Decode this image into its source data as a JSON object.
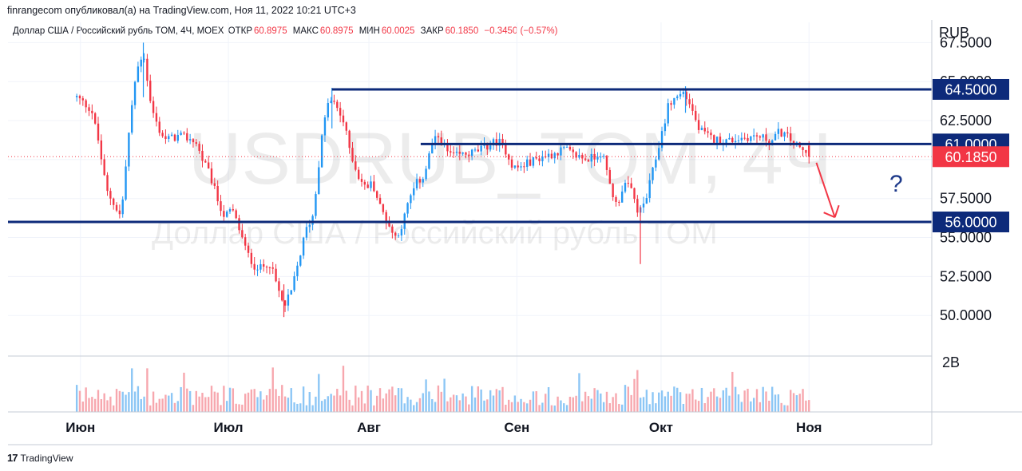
{
  "header": {
    "publisher_line": "finrangecom опубликовал(а) на TradingView.com, Ноя 11, 2022 10:21 UTC+3"
  },
  "legend": {
    "symbol": "Доллар США / Российский рубль TOM, 4Ч, MOEX",
    "open_label": "ОТКР",
    "open_value": "60.8975",
    "high_label": "МАКС",
    "high_value": "60.8975",
    "low_label": "МИН",
    "low_value": "60.0025",
    "close_label": "ЗАКР",
    "close_value": "60.1850",
    "change": "−0.3450 (−0.57%)"
  },
  "currency": "RUB",
  "watermark": {
    "symbol": "USDRUB_TOM, 4Ч",
    "description": "Доллар США / Российский рубль TOM"
  },
  "footer": {
    "logo_glyph": "17",
    "brand": "TradingView"
  },
  "chart_data": {
    "type": "candlestick",
    "y_axis": {
      "ticks": [
        "67.5000",
        "65.0000",
        "62.5000",
        "57.5000",
        "55.0000",
        "52.5000",
        "50.0000"
      ],
      "tick_values": [
        67.5,
        65.0,
        62.5,
        57.5,
        55.0,
        52.5,
        50.0
      ],
      "range": [
        47.4,
        68.8
      ],
      "volume_label": "2B"
    },
    "x_axis": {
      "labels": [
        "Июн",
        "Июл",
        "Авг",
        "Сен",
        "Окт",
        "Ноя"
      ],
      "label_positions": [
        0.5,
        20.5,
        39.5,
        59.5,
        79.0,
        99.0
      ],
      "range": [
        -9.3,
        115.6
      ]
    },
    "path": [
      [
        0,
        64.0
      ],
      [
        2,
        63.2
      ],
      [
        3,
        61.0
      ],
      [
        4,
        58.0
      ],
      [
        5,
        57.2
      ],
      [
        6,
        56.3
      ],
      [
        7,
        61.5
      ],
      [
        8,
        65.5
      ],
      [
        9,
        67.0
      ],
      [
        10,
        63.5
      ],
      [
        11,
        62.0
      ],
      [
        12,
        61.3
      ],
      [
        14,
        61.5
      ],
      [
        16,
        61.2
      ],
      [
        17,
        60.0
      ],
      [
        18,
        59.0
      ],
      [
        19,
        57.5
      ],
      [
        20,
        56.3
      ],
      [
        21,
        56.8
      ],
      [
        22,
        55.5
      ],
      [
        23,
        54.0
      ],
      [
        24,
        53.2
      ],
      [
        25,
        53.0
      ],
      [
        26,
        53.5
      ],
      [
        27,
        52.0
      ],
      [
        28,
        50.5
      ],
      [
        29,
        51.5
      ],
      [
        30,
        53.5
      ],
      [
        31,
        55.5
      ],
      [
        32,
        56.5
      ],
      [
        33,
        61.0
      ],
      [
        34,
        63.8
      ],
      [
        35,
        63.5
      ],
      [
        36,
        62.5
      ],
      [
        37,
        60.5
      ],
      [
        38,
        59.0
      ],
      [
        39,
        58.2
      ],
      [
        40,
        58.5
      ],
      [
        41,
        57.0
      ],
      [
        42,
        56.0
      ],
      [
        43,
        55.0
      ],
      [
        44,
        55.8
      ],
      [
        45,
        57.5
      ],
      [
        46,
        58.5
      ],
      [
        47,
        59.0
      ],
      [
        48,
        61.0
      ],
      [
        49,
        61.5
      ],
      [
        50,
        60.5
      ],
      [
        51,
        60.2
      ],
      [
        52,
        60.3
      ],
      [
        54,
        60.5
      ],
      [
        56,
        61.0
      ],
      [
        57,
        61.2
      ],
      [
        58,
        60.6
      ],
      [
        59,
        59.5
      ],
      [
        60,
        59.5
      ],
      [
        61,
        59.8
      ],
      [
        62,
        60.0
      ],
      [
        63,
        60.2
      ],
      [
        64,
        60.3
      ],
      [
        65,
        60.5
      ],
      [
        66,
        60.7
      ],
      [
        67,
        60.3
      ],
      [
        68,
        60.2
      ],
      [
        69,
        60.0
      ],
      [
        70,
        60.2
      ],
      [
        71,
        60.5
      ],
      [
        72,
        58.5
      ],
      [
        73,
        57.0
      ],
      [
        74,
        58.5
      ],
      [
        75,
        58.0
      ],
      [
        76,
        56.5
      ],
      [
        77,
        57.5
      ],
      [
        78,
        59.5
      ],
      [
        79,
        61.5
      ],
      [
        80,
        63.5
      ],
      [
        81,
        64.0
      ],
      [
        82,
        64.3
      ],
      [
        83,
        63.5
      ],
      [
        84,
        62.0
      ],
      [
        85,
        61.6
      ],
      [
        86,
        61.3
      ],
      [
        88,
        61.2
      ],
      [
        90,
        61.4
      ],
      [
        92,
        61.5
      ],
      [
        94,
        61.2
      ],
      [
        95,
        61.8
      ],
      [
        96,
        61.5
      ],
      [
        97,
        61.0
      ],
      [
        98,
        60.6
      ],
      [
        99,
        60.185
      ]
    ],
    "wick_extremes": {
      "high_june": 67.5,
      "low_july": 49.9,
      "high_july": 64.6,
      "low_september_spike": 53.3,
      "high_october": 64.7
    },
    "levels": [
      {
        "label": "64.5000",
        "value": 64.5,
        "x_from": 34.5
      },
      {
        "label": "61.0000",
        "value": 61.0,
        "x_from": 46.5
      },
      {
        "label": "56.0000",
        "value": 56.0,
        "x_from": -9.3
      }
    ],
    "current_price": {
      "label": "60.1850",
      "value": 60.185
    },
    "annotation": {
      "text": "?",
      "arrow_from": [
        100.0,
        59.8
      ],
      "arrow_to": [
        102.5,
        56.3
      ]
    },
    "colors": {
      "up": "#2196f3",
      "down": "#f23645",
      "level_line": "#0d2a7a",
      "level_badge": "#0d2a7a",
      "price_badge": "#f23645",
      "arrow": "#f23645",
      "volume_up": "#8cc6f5",
      "volume_down": "#f7a7ae"
    },
    "grid": true
  }
}
